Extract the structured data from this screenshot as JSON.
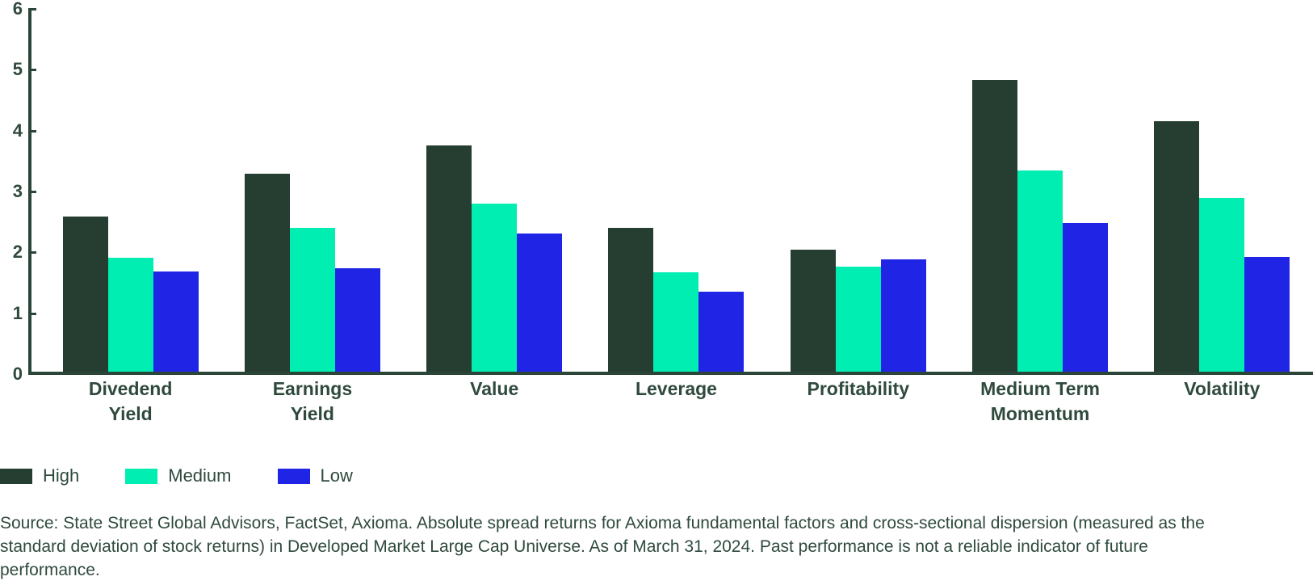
{
  "chart_data": {
    "type": "bar",
    "title": "",
    "categories": [
      "Divedend Yield",
      "Earnings Yield",
      "Value",
      "Leverage",
      "Profitability",
      "Medium Term Momentum",
      "Volatility"
    ],
    "categories_wrapped": [
      "Divedend\nYield",
      "Earnings\nYield",
      "Value",
      "Leverage",
      "Profitability",
      "Medium Term\nMomentum",
      "Volatility"
    ],
    "series": [
      {
        "name": "High",
        "color": "#263D31",
        "values": [
          2.55,
          3.25,
          3.72,
          2.36,
          2.01,
          4.79,
          4.12
        ]
      },
      {
        "name": "Medium",
        "color": "#00EEB2",
        "values": [
          1.87,
          2.36,
          2.76,
          1.63,
          1.73,
          3.31,
          2.85
        ]
      },
      {
        "name": "Low",
        "color": "#2024E4",
        "values": [
          1.65,
          1.7,
          2.27,
          1.31,
          1.84,
          2.44,
          1.88
        ]
      }
    ],
    "xlabel": "",
    "ylabel": "",
    "ylim": [
      0,
      6
    ],
    "y_ticks": [
      0,
      1,
      2,
      3,
      4,
      5,
      6
    ],
    "grid": false,
    "legend_position": "bottom-left"
  },
  "colors": {
    "axis": "#2B4539",
    "text": "#2F4A3D",
    "background": "#FFFFFF"
  },
  "source_note": "Source: State Street Global Advisors, FactSet, Axioma. Absolute spread returns for Axioma fundamental factors and cross-sectional dispersion (measured as the standard deviation of stock returns) in Developed Market Large Cap Universe. As of March 31, 2024. Past performance is not a reliable indicator of future performance."
}
